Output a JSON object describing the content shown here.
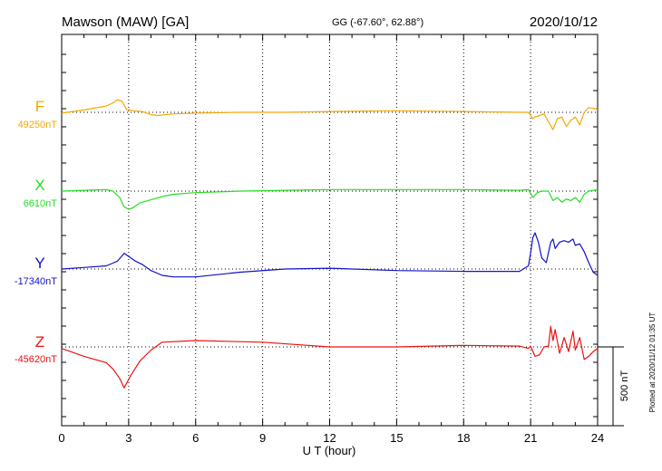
{
  "header": {
    "station": "Mawson (MAW)  [GA]",
    "coords": "GG (-67.60°,  62.88°)",
    "date": "2020/10/12"
  },
  "side_note": "Plotted at 2020/11/12 01:35 UT",
  "scale_label": "500 nT",
  "chart_data": {
    "type": "line",
    "xlabel": "U T (hour)",
    "xlim": [
      0,
      24
    ],
    "xticks": [
      "0",
      "3",
      "6",
      "9",
      "12",
      "15",
      "18",
      "21",
      "24"
    ],
    "scale_bar_nT": 500,
    "grid": "dotted vertical lines every 3 hours, dotted baseline per trace",
    "series": [
      {
        "name": "F",
        "baseline_label": "49250nT",
        "baseline_nT": 49250,
        "color": "#f5a800",
        "t": [
          0,
          1,
          2,
          2.3,
          2.5,
          2.7,
          2.9,
          3.2,
          3.6,
          4.0,
          4.3,
          5,
          6,
          8,
          10,
          12,
          15,
          18,
          20.5,
          20.9,
          21.1,
          21.2,
          21.4,
          21.6,
          21.8,
          22.0,
          22.2,
          22.4,
          22.6,
          22.8,
          23.0,
          23.2,
          23.4,
          23.6,
          24
        ],
        "v": [
          -5,
          15,
          40,
          60,
          80,
          70,
          20,
          10,
          5,
          -15,
          -20,
          -10,
          -5,
          0,
          0,
          5,
          10,
          5,
          0,
          0,
          -40,
          -30,
          -20,
          -10,
          -60,
          -110,
          -40,
          -30,
          -90,
          -50,
          -30,
          -80,
          0,
          30,
          20
        ]
      },
      {
        "name": "X",
        "baseline_label": "6610nT",
        "baseline_nT": 6610,
        "color": "#22dd22",
        "t": [
          0,
          1,
          2,
          2.3,
          2.6,
          2.8,
          3.0,
          3.2,
          3.5,
          4.0,
          4.5,
          5,
          6,
          8,
          10,
          12,
          15,
          18,
          20.5,
          20.9,
          21.1,
          21.3,
          21.5,
          21.8,
          22.0,
          22.2,
          22.4,
          22.6,
          22.8,
          23.0,
          23.2,
          23.4,
          23.6,
          24
        ],
        "v": [
          0,
          5,
          10,
          0,
          -40,
          -100,
          -115,
          -105,
          -75,
          -55,
          -35,
          -20,
          -10,
          0,
          5,
          10,
          10,
          10,
          5,
          10,
          -40,
          -10,
          0,
          0,
          -60,
          -40,
          -70,
          -50,
          -60,
          -40,
          -70,
          -20,
          0,
          10
        ]
      },
      {
        "name": "Y",
        "baseline_label": "-17340nT",
        "baseline_nT": -17340,
        "color": "#1111cc",
        "t": [
          0,
          1,
          2,
          2.5,
          2.8,
          3.0,
          3.3,
          3.6,
          4.0,
          4.5,
          5,
          6,
          8,
          10,
          12,
          15,
          18,
          20.5,
          20.9,
          21.0,
          21.1,
          21.2,
          21.35,
          21.5,
          21.7,
          21.9,
          22.0,
          22.1,
          22.3,
          22.5,
          22.7,
          22.9,
          23.0,
          23.2,
          23.4,
          23.6,
          23.8,
          24
        ],
        "v": [
          0,
          10,
          20,
          50,
          100,
          80,
          50,
          30,
          -10,
          -40,
          -50,
          -50,
          -20,
          0,
          5,
          -10,
          -15,
          -15,
          20,
          100,
          200,
          230,
          170,
          70,
          40,
          170,
          190,
          130,
          170,
          180,
          170,
          190,
          150,
          160,
          110,
          40,
          -20,
          -40
        ]
      },
      {
        "name": "Z",
        "baseline_label": "-45620nT",
        "baseline_nT": -45620,
        "color": "#ee1111",
        "t": [
          0,
          1,
          2,
          2.3,
          2.6,
          2.8,
          3.1,
          3.5,
          4.0,
          4.5,
          6,
          9,
          12,
          15,
          18,
          20.5,
          20.9,
          21.0,
          21.2,
          21.4,
          21.6,
          21.8,
          21.9,
          22.0,
          22.1,
          22.3,
          22.5,
          22.7,
          22.9,
          23.0,
          23.2,
          23.4,
          23.6,
          23.8,
          24
        ],
        "v": [
          -10,
          -60,
          -100,
          -140,
          -200,
          -260,
          -180,
          -90,
          -20,
          30,
          40,
          30,
          0,
          0,
          10,
          5,
          -10,
          5,
          -60,
          -50,
          0,
          5,
          130,
          40,
          110,
          -40,
          60,
          -30,
          100,
          -20,
          60,
          -80,
          -60,
          -30,
          -10
        ]
      }
    ]
  }
}
